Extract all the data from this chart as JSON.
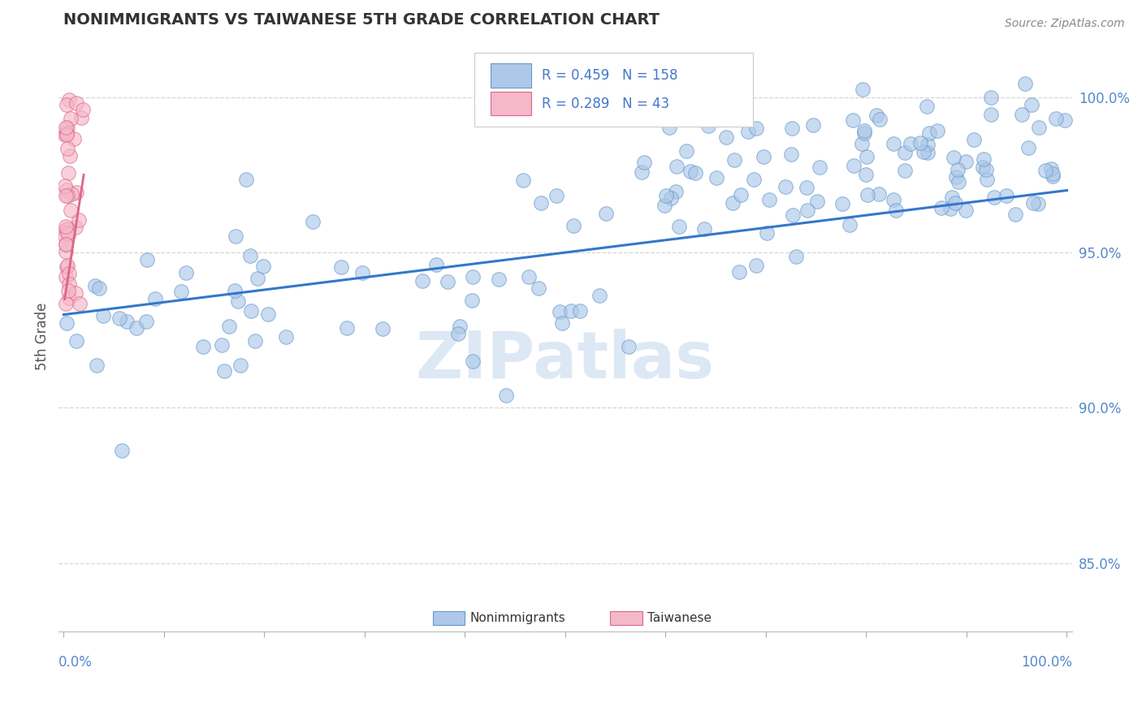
{
  "title": "NONIMMIGRANTS VS TAIWANESE 5TH GRADE CORRELATION CHART",
  "source": "Source: ZipAtlas.com",
  "ylabel": "5th Grade",
  "blue_R": 0.459,
  "blue_N": 158,
  "pink_R": 0.289,
  "pink_N": 43,
  "blue_color": "#adc8e8",
  "pink_color": "#f5b8c8",
  "blue_edge": "#6699cc",
  "pink_edge": "#dd6688",
  "trend_blue": "#3377cc",
  "legend_text_color": "#4477cc",
  "watermark_color": "#dde8f5",
  "background_color": "#ffffff",
  "grid_color": "#cccccc",
  "title_color": "#333333",
  "ytick_color": "#5588cc",
  "xtick_color": "#5588cc"
}
